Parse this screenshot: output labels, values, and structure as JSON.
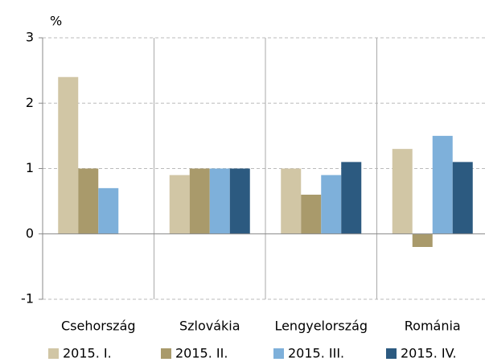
{
  "chart_data": {
    "type": "bar",
    "y_axis_label": "%",
    "categories": [
      "Csehország",
      "Szlovákia",
      "Lengyelország",
      "Románia"
    ],
    "series": [
      {
        "name": "2015. I.",
        "color": "#d1c6a5",
        "values": [
          2.4,
          0.9,
          1.0,
          1.3
        ]
      },
      {
        "name": "2015. II.",
        "color": "#a99a6b",
        "values": [
          1.0,
          1.0,
          0.6,
          -0.2
        ]
      },
      {
        "name": "2015. III.",
        "color": "#7eb0da",
        "values": [
          0.7,
          1.0,
          0.9,
          1.5
        ]
      },
      {
        "name": "2015. IV.",
        "color": "#2c5a80",
        "values": [
          null,
          1.0,
          1.1,
          1.1
        ]
      }
    ],
    "ylim": [
      -1,
      3
    ],
    "yticks": [
      -1,
      0,
      1,
      2,
      3
    ],
    "grid": true,
    "legend": "bottom"
  }
}
